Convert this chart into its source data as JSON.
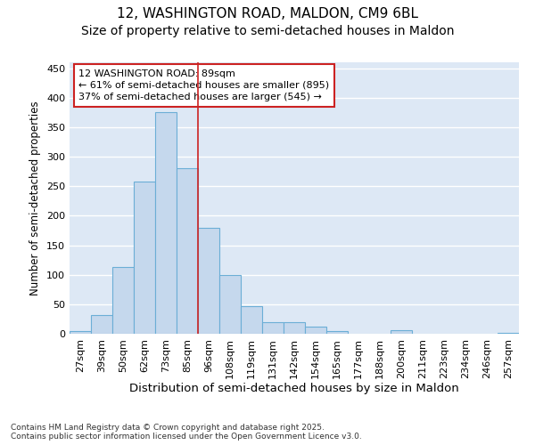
{
  "title_line1": "12, WASHINGTON ROAD, MALDON, CM9 6BL",
  "title_line2": "Size of property relative to semi-detached houses in Maldon",
  "xlabel": "Distribution of semi-detached houses by size in Maldon",
  "ylabel": "Number of semi-detached properties",
  "categories": [
    "27sqm",
    "39sqm",
    "50sqm",
    "62sqm",
    "73sqm",
    "85sqm",
    "96sqm",
    "108sqm",
    "119sqm",
    "131sqm",
    "142sqm",
    "154sqm",
    "165sqm",
    "177sqm",
    "188sqm",
    "200sqm",
    "211sqm",
    "223sqm",
    "234sqm",
    "246sqm",
    "257sqm"
  ],
  "values": [
    5,
    32,
    113,
    258,
    375,
    280,
    180,
    100,
    47,
    20,
    20,
    12,
    5,
    0,
    0,
    6,
    0,
    0,
    0,
    0,
    2
  ],
  "bar_color": "#c5d8ed",
  "bar_edge_color": "#6baed6",
  "background_color": "#dde8f5",
  "grid_color": "#ffffff",
  "annotation_line1": "12 WASHINGTON ROAD: 89sqm",
  "annotation_line2": "← 61% of semi-detached houses are smaller (895)",
  "annotation_line3": "37% of semi-detached houses are larger (545) →",
  "annotation_box_color": "#ffffff",
  "annotation_box_edge": "#cc2222",
  "vline_x": 5.5,
  "vline_color": "#cc2222",
  "ylim": [
    0,
    460
  ],
  "yticks": [
    0,
    50,
    100,
    150,
    200,
    250,
    300,
    350,
    400,
    450
  ],
  "footnote": "Contains HM Land Registry data © Crown copyright and database right 2025.\nContains public sector information licensed under the Open Government Licence v3.0.",
  "title_fontsize": 11,
  "subtitle_fontsize": 10,
  "xlabel_fontsize": 9.5,
  "ylabel_fontsize": 8.5,
  "tick_fontsize": 8,
  "annot_fontsize": 8,
  "footnote_fontsize": 6.5
}
